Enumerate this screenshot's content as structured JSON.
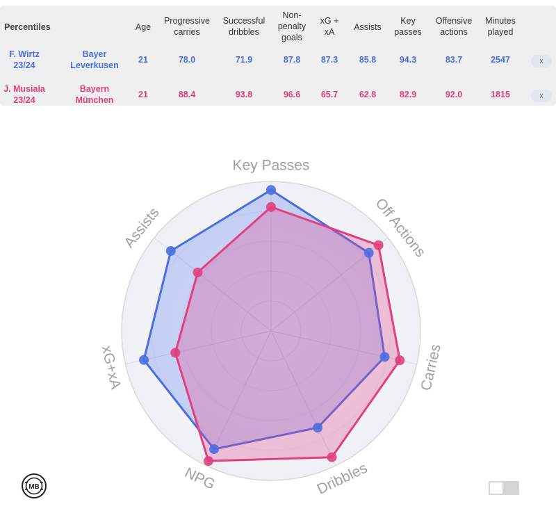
{
  "table": {
    "title": "Percentiles",
    "headers": {
      "age": [
        "Age"
      ],
      "prog_carries": [
        "Progressive",
        "carries"
      ],
      "succ_dribbles": [
        "Successful",
        "dribbles"
      ],
      "np_goals": [
        "Non-",
        "penalty",
        "goals"
      ],
      "xg_xa": [
        "xG +",
        "xA"
      ],
      "assists": [
        "Assists"
      ],
      "key_passes": [
        "Key",
        "passes"
      ],
      "off_actions": [
        "Offensive",
        "actions"
      ],
      "minutes": [
        "Minutes",
        "played"
      ]
    },
    "rows": [
      {
        "player": [
          "F. Wirtz",
          "23/24"
        ],
        "team": [
          "Bayer",
          "Leverkusen"
        ],
        "values": [
          "21",
          "78.0",
          "71.9",
          "87.8",
          "87.3",
          "85.8",
          "94.3",
          "83.7",
          "2547"
        ],
        "remove_label": "x",
        "color": "#4a6ee0"
      },
      {
        "player": [
          "J. Musiala",
          "23/24"
        ],
        "team": [
          "Bayern",
          "München"
        ],
        "values": [
          "21",
          "88.4",
          "93.8",
          "96.6",
          "65.7",
          "62.8",
          "82.9",
          "92.0",
          "1815"
        ],
        "remove_label": "x",
        "color": "#e0407f"
      }
    ]
  },
  "chart_data": {
    "type": "radar",
    "axes": [
      "Key Passes",
      "Off Actions",
      "Carries",
      "Dribbles",
      "NPG",
      "xG+xA",
      "Assists"
    ],
    "range": [
      0,
      100
    ],
    "series": [
      {
        "values": [
          94.3,
          83.7,
          78.0,
          71.9,
          87.8,
          87.3,
          85.8
        ],
        "color": "#4a6ee0",
        "fill": "rgba(80,115,235,0.28)"
      },
      {
        "values": [
          82.9,
          92.0,
          88.4,
          93.8,
          96.6,
          65.7,
          62.8
        ],
        "color": "#e0407f",
        "fill": "rgba(225,70,140,0.30)"
      }
    ],
    "grid_color": "#d8d8d8",
    "label_color": "#a0a0a0"
  },
  "logo_text": "MB"
}
